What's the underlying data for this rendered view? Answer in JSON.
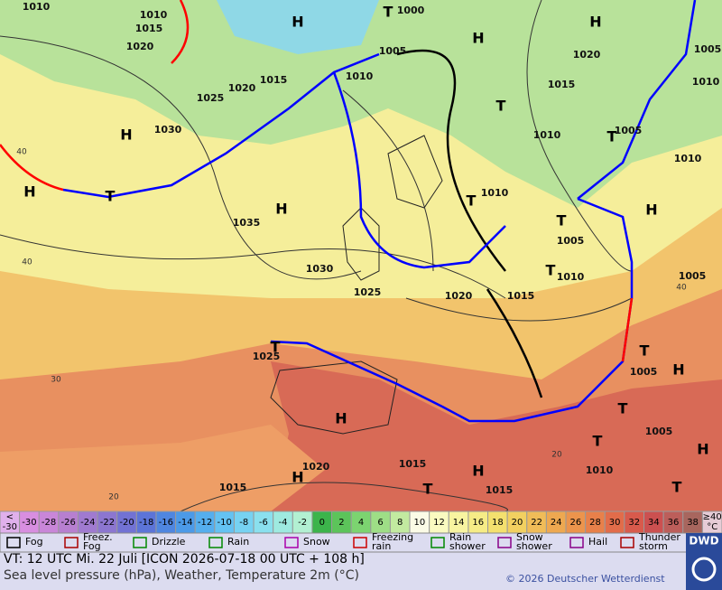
{
  "map": {
    "pressure_labels": [
      1010,
      1010,
      1015,
      1020,
      1000,
      1005,
      1015,
      1020,
      1010,
      1025,
      1030,
      1035,
      1030,
      1025,
      1020,
      1015,
      1010,
      1010,
      1015,
      1020,
      1005,
      1010,
      1005,
      1010,
      1005,
      1010,
      1005,
      1025,
      1005,
      1005,
      1010,
      1015,
      1020,
      1015,
      1015
    ],
    "centers": [
      "H",
      "H",
      "H",
      "H",
      "H",
      "H",
      "H",
      "H",
      "H",
      "H",
      "H",
      "H",
      "T",
      "T",
      "T",
      "T",
      "T",
      "T",
      "T",
      "T",
      "T",
      "T",
      "T",
      "T",
      "T"
    ],
    "temperature_labels": [
      40,
      40,
      30,
      20,
      20,
      40
    ]
  },
  "color_scale": {
    "below_sign": "<",
    "below_value": -30,
    "values": [
      -30,
      -28,
      -26,
      -24,
      -22,
      -20,
      -18,
      -16,
      -14,
      -12,
      -10,
      -8,
      -6,
      -4,
      -2,
      0,
      2,
      4,
      6,
      8,
      10,
      12,
      14,
      16,
      18,
      20,
      22,
      24,
      26,
      28,
      30,
      32,
      34,
      36,
      38
    ],
    "colors": [
      "#d88ee0",
      "#c986d8",
      "#b77fd0",
      "#a07ad0",
      "#8c76d0",
      "#7272d4",
      "#5c74d8",
      "#4f86e0",
      "#4c9ae8",
      "#55aeee",
      "#64c2f2",
      "#76d2f2",
      "#8ae0ee",
      "#9eeae0",
      "#b2f0d2",
      "#3cb44b",
      "#5cc45a",
      "#7cd470",
      "#9ede86",
      "#c2eaa0",
      "#fbfbe6",
      "#fafac0",
      "#f8f4a0",
      "#f6ec86",
      "#f4e06e",
      "#f2d060",
      "#f0bc58",
      "#eea850",
      "#ec944c",
      "#e8804a",
      "#e26c4a",
      "#d85a4c",
      "#cc5050",
      "#bc5e5a",
      "#a8665e"
    ],
    "above_value": "≥40",
    "above_unit": "°C"
  },
  "legend": [
    [
      "Fog"
    ],
    [
      "Freez.",
      "Fog"
    ],
    [
      "Drizzle"
    ],
    [
      "Rain"
    ],
    [
      "Snow"
    ],
    [
      "Freezing",
      "rain"
    ],
    [
      "Rain",
      "shower"
    ],
    [
      "Snow",
      "shower"
    ],
    [
      "Hail"
    ],
    [
      "Thunder",
      "storm"
    ]
  ],
  "footer": {
    "valid_time": "VT: 12 UTC Mi.   22 Juli [ICON 2026-07-18  00 UTC + 108 h]",
    "description": "Sea level pressure (hPa), Weather, Temperature 2m (°C)",
    "copyright": "© 2026 Deutscher Wetterdienst",
    "logo": "DWD"
  }
}
